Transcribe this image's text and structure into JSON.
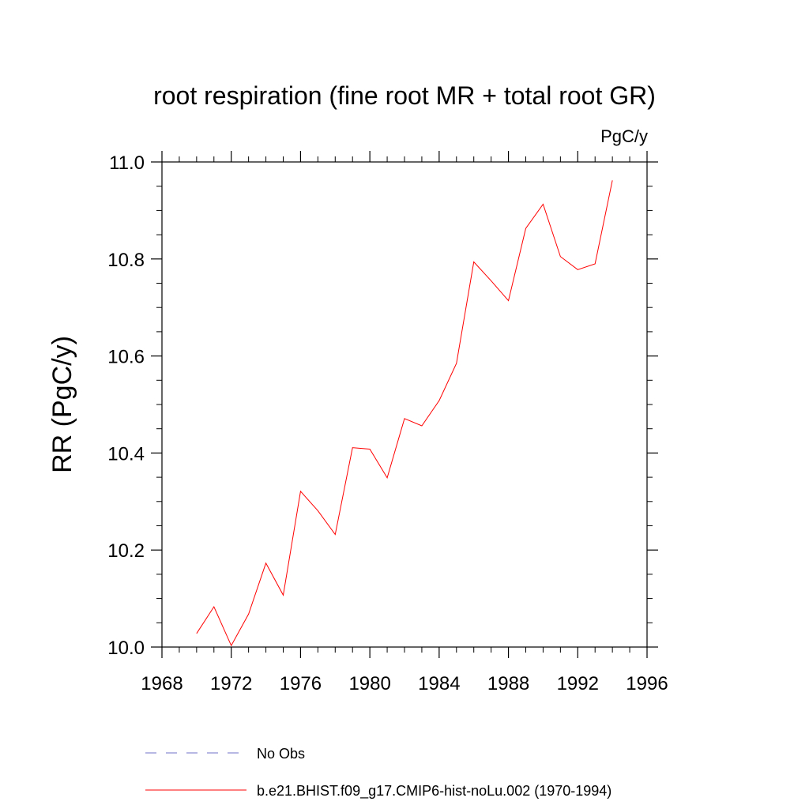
{
  "chart_data": {
    "type": "line",
    "title": "root respiration (fine root MR + total root GR)",
    "units": "PgC/y",
    "ylabel": "RR  (PgC/y)",
    "xlabel": "",
    "xlim": [
      1968,
      1996
    ],
    "ylim": [
      10.0,
      11.0
    ],
    "x_ticks": [
      1968,
      1972,
      1976,
      1980,
      1984,
      1988,
      1992,
      1996
    ],
    "x_tick_labels": [
      "1968",
      "1972",
      "1976",
      "1980",
      "1984",
      "1988",
      "1992",
      "1996"
    ],
    "y_ticks": [
      10.0,
      10.2,
      10.4,
      10.6,
      10.8,
      11.0
    ],
    "y_tick_labels": [
      "10.0",
      "10.2",
      "10.4",
      "10.6",
      "10.8",
      "11.0"
    ],
    "grid": false,
    "legend_position": "bottom",
    "series": [
      {
        "name": "No Obs",
        "color": "#7070c8",
        "dash": "dashed",
        "x": [],
        "y": []
      },
      {
        "name": "b.e21.BHIST.f09_g17.CMIP6-hist-noLu.002 (1970-1994)",
        "color": "#ff0000",
        "dash": "solid",
        "x": [
          1970,
          1971,
          1972,
          1973,
          1974,
          1975,
          1976,
          1977,
          1978,
          1979,
          1980,
          1981,
          1982,
          1983,
          1984,
          1985,
          1986,
          1987,
          1988,
          1989,
          1990,
          1991,
          1992,
          1993,
          1994
        ],
        "y": [
          10.028,
          10.083,
          10.003,
          10.068,
          10.173,
          10.107,
          10.321,
          10.281,
          10.232,
          10.411,
          10.408,
          10.349,
          10.471,
          10.456,
          10.508,
          10.585,
          10.794,
          10.755,
          10.714,
          10.863,
          10.913,
          10.805,
          10.778,
          10.79,
          10.962
        ]
      }
    ]
  }
}
